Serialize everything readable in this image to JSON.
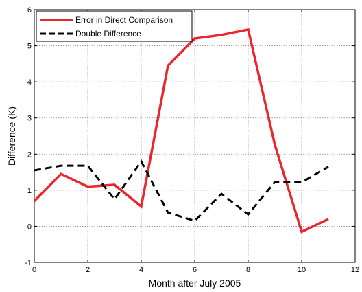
{
  "chart_data": {
    "type": "line",
    "xlabel": "Month after July 2005",
    "ylabel": "Difference (K)",
    "xlim": [
      0,
      12
    ],
    "ylim": [
      -1,
      6
    ],
    "xticks": [
      0,
      2,
      4,
      6,
      8,
      10,
      12
    ],
    "yticks": [
      -1,
      0,
      1,
      2,
      3,
      4,
      5,
      6
    ],
    "grid": true,
    "legend_position": "top-left",
    "series": [
      {
        "name": "Error in Direct Comparison",
        "color": "#e8262b",
        "style": "solid",
        "x": [
          0,
          1,
          2,
          3,
          4,
          5,
          6,
          7,
          8,
          9,
          10,
          11
        ],
        "y": [
          0.7,
          1.45,
          1.1,
          1.15,
          0.55,
          4.45,
          5.2,
          5.3,
          5.45,
          2.25,
          -0.15,
          0.2
        ]
      },
      {
        "name": "Double Difference",
        "color": "#000000",
        "style": "dashed",
        "x": [
          0,
          1,
          2,
          3,
          4,
          5,
          6,
          7,
          8,
          9,
          10,
          11
        ],
        "y": [
          1.55,
          1.68,
          1.68,
          0.75,
          1.8,
          0.38,
          0.15,
          0.9,
          0.33,
          1.23,
          1.22,
          1.65
        ]
      }
    ]
  }
}
